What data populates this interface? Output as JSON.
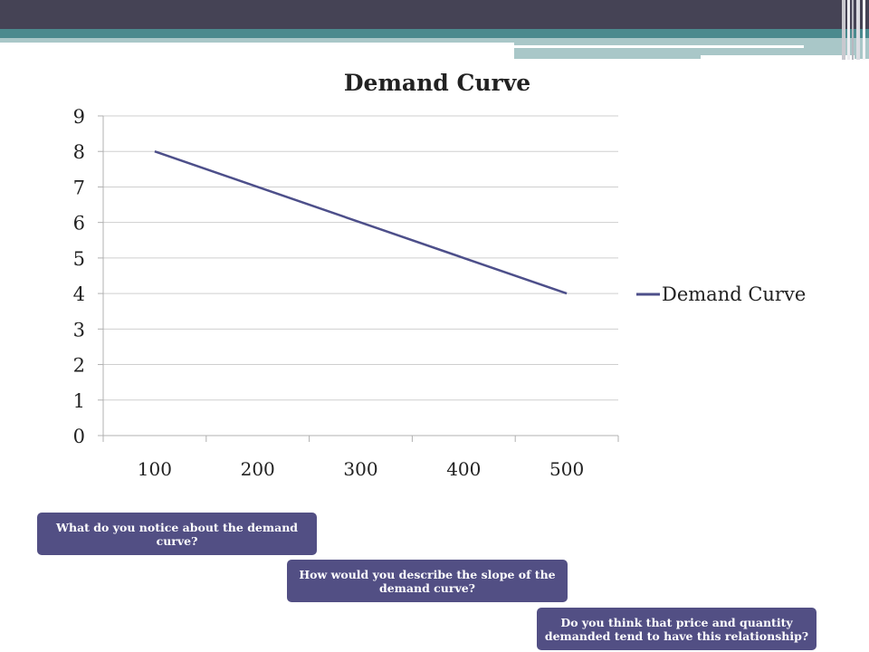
{
  "chart_data": {
    "type": "line",
    "title": "Demand Curve",
    "categories": [
      "100",
      "200",
      "300",
      "400",
      "500"
    ],
    "series": [
      {
        "name": "Demand Curve",
        "values": [
          8,
          7,
          6,
          5,
          4
        ],
        "color": "#4d4f8a"
      }
    ],
    "yticks": [
      "0",
      "1",
      "2",
      "3",
      "4",
      "5",
      "6",
      "7",
      "8",
      "9"
    ],
    "ylim": [
      0,
      9
    ],
    "grid": "horizontal",
    "legend": "right"
  },
  "questions": [
    "What do you notice about the demand curve?",
    "How would you describe the slope of the demand curve?",
    "Do you think that price and quantity demanded tend to have this relationship?"
  ],
  "colors": {
    "header_dark": "#454355",
    "header_teal": "#4b8a8e",
    "question_box": "#524f84"
  }
}
